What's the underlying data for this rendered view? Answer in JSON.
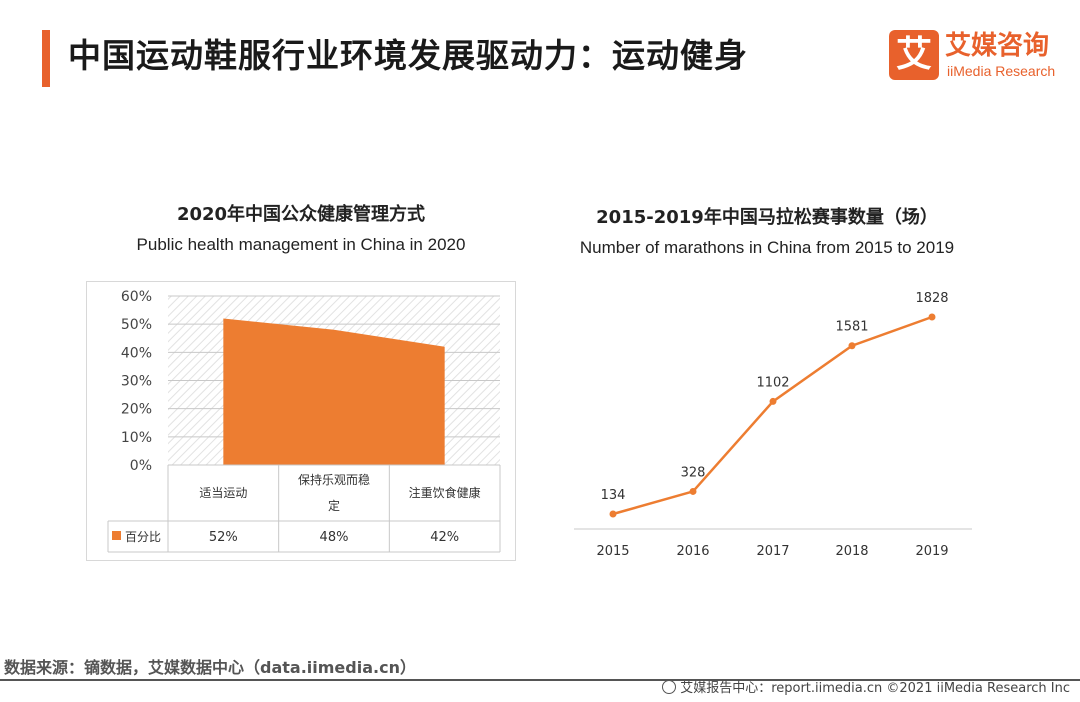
{
  "page": {
    "title": "中国运动鞋服行业环境发展驱动力：运动健身",
    "source": "数据来源：镝数据，艾媒数据中心（data.iimedia.cn）",
    "footer": "艾媒报告中心：report.iimedia.cn   ©2021  iiMedia Research  Inc"
  },
  "logo": {
    "mark": "艾",
    "cn": "艾媒咨询",
    "en": "iiMedia Research"
  },
  "colors": {
    "accent": "#e8612c",
    "series": "#ed7d31"
  },
  "chart_data": [
    {
      "type": "area",
      "title": "2020年中国公众健康管理方式",
      "subtitle": "Public health management in China in 2020",
      "categories": [
        "适当运动",
        "保持乐观而稳定",
        "注重饮食健康"
      ],
      "series": [
        {
          "name": "百分比",
          "values": [
            52,
            48,
            42
          ],
          "labels": [
            "52%",
            "48%",
            "42%"
          ]
        }
      ],
      "ylim": [
        0,
        60
      ],
      "yticks": [
        "0%",
        "10%",
        "20%",
        "30%",
        "40%",
        "50%",
        "60%"
      ],
      "ytick_values": [
        0,
        10,
        20,
        30,
        40,
        50,
        60
      ],
      "grid": true,
      "data_table": true
    },
    {
      "type": "line",
      "title": "2015-2019年中国马拉松赛事数量（场）",
      "subtitle": "Number of marathons in China from 2015 to 2019",
      "x": [
        "2015",
        "2016",
        "2017",
        "2018",
        "2019"
      ],
      "series": [
        {
          "values": [
            134,
            328,
            1102,
            1581,
            1828
          ]
        }
      ],
      "ylim": [
        0,
        2000
      ],
      "grid": false
    }
  ]
}
